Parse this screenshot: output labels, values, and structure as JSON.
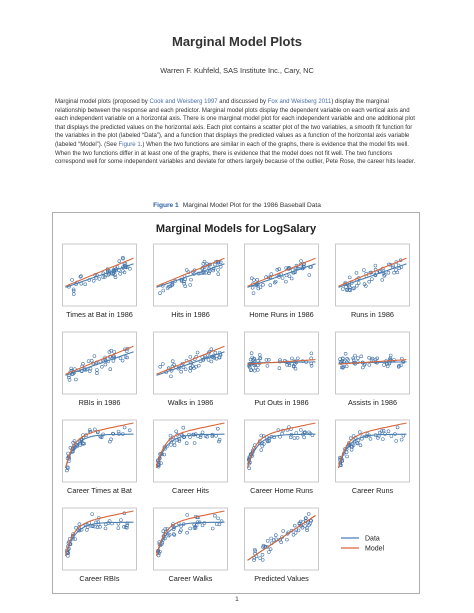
{
  "document": {
    "title": "Marginal Model Plots",
    "author": "Warren F. Kuhfeld, SAS Institute Inc., Cary, NC",
    "abstract_parts": {
      "p1": "Marginal model plots (proposed by ",
      "link1": "Cook and Weisberg 1997",
      "p2": " and discussed by ",
      "link2": "Fox and Weisberg 2011",
      "p3": ") display the marginal relationship between the response and each predictor. Marginal model plots display the dependent variable on each vertical axis and each independent variable on a horizontal axis. There is one marginal model plot for each independent variable and one additional plot that displays the predicted values on the horizontal axis. Each plot contains a scatter plot of the two variables, a smooth fit function for the variables in the plot (labeled “Data”), and a function that displays the predicted values as a function of the horizontal axis variable (labeled “Model”). (See ",
      "link3": "Figure 1",
      "p4": ".) When the two functions are similar in each of the graphs, there is evidence that the model fits well. When the two functions differ in at least one of the graphs, there is evidence that the model does not fit well. The two functions correspond well for some independent variables and deviate for others largely because of the outlier, Pete Rose, the career hits leader."
    },
    "caption_label": "Figure 1",
    "caption_text": "Marginal Model Plot for the 1986 Baseball Data",
    "page_number": "1"
  },
  "chart_data": {
    "type": "scatter",
    "title": "Marginal Models for LogSalary",
    "legend": {
      "placement": "bottom-right cell",
      "entries": [
        {
          "name": "Data",
          "color": "#4a7fb0"
        },
        {
          "name": "Model",
          "color": "#d9663a"
        }
      ]
    },
    "panels": [
      {
        "label": "Times at Bat in 1986",
        "pattern": "rising"
      },
      {
        "label": "Hits in 1986",
        "pattern": "rising"
      },
      {
        "label": "Home Runs in 1986",
        "pattern": "rising"
      },
      {
        "label": "Runs in 1986",
        "pattern": "rising"
      },
      {
        "label": "RBIs in 1986",
        "pattern": "rising"
      },
      {
        "label": "Walks in 1986",
        "pattern": "rising"
      },
      {
        "label": "Put Outs in 1986",
        "pattern": "flat"
      },
      {
        "label": "Assists in 1986",
        "pattern": "flat"
      },
      {
        "label": "Career Times at Bat",
        "pattern": "career"
      },
      {
        "label": "Career Hits",
        "pattern": "career"
      },
      {
        "label": "Career Home Runs",
        "pattern": "career"
      },
      {
        "label": "Career Runs",
        "pattern": "career"
      },
      {
        "label": "Career RBIs",
        "pattern": "career"
      },
      {
        "label": "Career Walks",
        "pattern": "career"
      },
      {
        "label": "Predicted Values",
        "pattern": "predicted"
      }
    ],
    "colors": {
      "points": "#3d6fa8",
      "data_line": "#4a7fb0",
      "model_line": "#d9663a",
      "frame": "#bcbcbc"
    }
  }
}
